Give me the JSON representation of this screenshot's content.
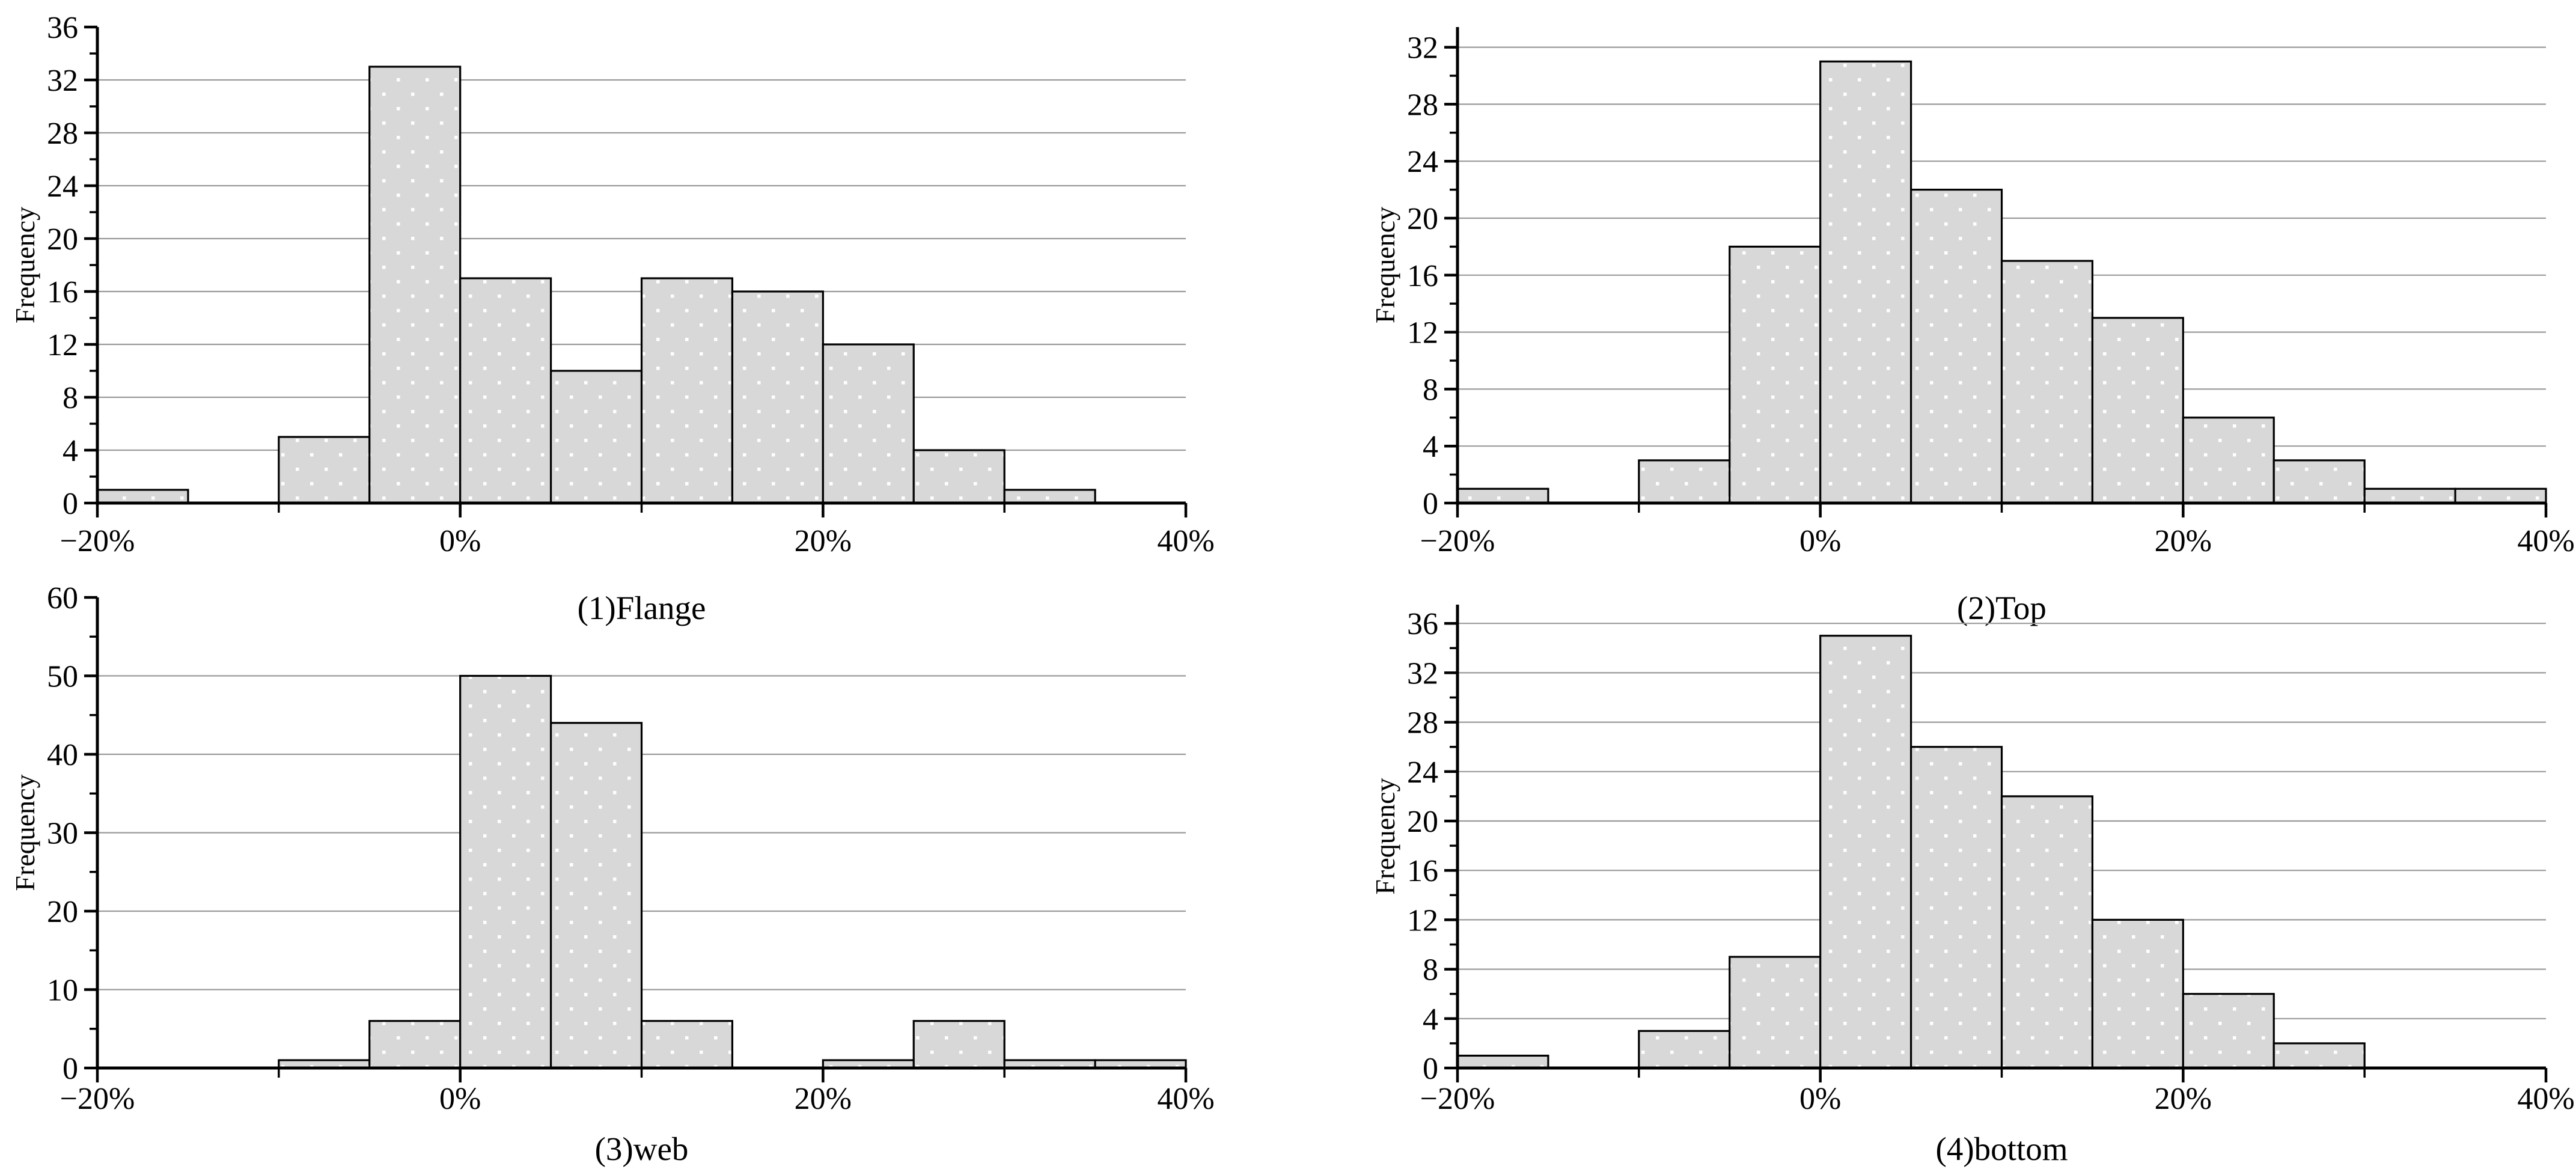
{
  "figure": {
    "background": "#ffffff",
    "bar_fill": "#d8d8d8",
    "bar_dot_color": "#ffffff",
    "bar_stroke": "#000000",
    "grid_color": "#9a9a9a",
    "axis_color": "#000000",
    "text_color": "#000000"
  },
  "chart_data": [
    {
      "type": "bar",
      "subtype": "histogram",
      "title": "(1)Flange",
      "ylabel": "Frequency",
      "xlabel": "",
      "bin_start": -20,
      "bin_width": 5,
      "bin_unit": "%",
      "values": [
        1,
        0,
        5,
        33,
        17,
        10,
        17,
        16,
        12,
        4,
        1,
        0
      ],
      "xlim": [
        -20,
        40
      ],
      "ylim": [
        0,
        36
      ],
      "x_major_ticks": [
        -20,
        0,
        20,
        40
      ],
      "x_major_labels": [
        "−20%",
        "0%",
        "20%",
        "40%"
      ],
      "x_minor_ticks": [
        -10,
        10,
        30
      ],
      "y_major_ticks": [
        0,
        4,
        8,
        12,
        16,
        20,
        24,
        28,
        32,
        36
      ],
      "y_minor_ticks": [
        2,
        6,
        10,
        14,
        18,
        22,
        26,
        30,
        34
      ],
      "gridlines_y": [
        4,
        8,
        12,
        16,
        20,
        24,
        28,
        32
      ],
      "grid": "horizontal",
      "legend": "none"
    },
    {
      "type": "bar",
      "subtype": "histogram",
      "title": "(2)Top",
      "ylabel": "Frequency",
      "xlabel": "",
      "bin_start": -20,
      "bin_width": 5,
      "bin_unit": "%",
      "values": [
        1,
        0,
        3,
        18,
        31,
        22,
        17,
        13,
        6,
        3,
        1,
        1
      ],
      "xlim": [
        -20,
        40
      ],
      "ylim": [
        0,
        32
      ],
      "x_major_ticks": [
        -20,
        0,
        20,
        40
      ],
      "x_major_labels": [
        "−20%",
        "0%",
        "20%",
        "40%"
      ],
      "x_minor_ticks": [
        -10,
        10,
        30
      ],
      "y_major_ticks": [
        0,
        4,
        8,
        12,
        16,
        20,
        24,
        28,
        32
      ],
      "y_minor_ticks": [
        2,
        6,
        10,
        14,
        18,
        22,
        26,
        30
      ],
      "gridlines_y": [
        4,
        8,
        12,
        16,
        20,
        24,
        28,
        32
      ],
      "grid": "horizontal",
      "legend": "none"
    },
    {
      "type": "bar",
      "subtype": "histogram",
      "title": "(3)web",
      "ylabel": "Frequency",
      "xlabel": "",
      "bin_start": -20,
      "bin_width": 5,
      "bin_unit": "%",
      "values": [
        0,
        0,
        1,
        6,
        50,
        44,
        6,
        0,
        1,
        6,
        1,
        1
      ],
      "xlim": [
        -20,
        40
      ],
      "ylim": [
        0,
        60
      ],
      "x_major_ticks": [
        -20,
        0,
        20,
        40
      ],
      "x_major_labels": [
        "−20%",
        "0%",
        "20%",
        "40%"
      ],
      "x_minor_ticks": [
        -10,
        10,
        30
      ],
      "y_major_ticks": [
        0,
        10,
        20,
        30,
        40,
        50,
        60
      ],
      "y_minor_ticks": [
        5,
        15,
        25,
        35,
        45,
        55
      ],
      "gridlines_y": [
        10,
        20,
        30,
        40,
        50
      ],
      "grid": "horizontal",
      "legend": "none"
    },
    {
      "type": "bar",
      "subtype": "histogram",
      "title": "(4)bottom",
      "ylabel": "Frequency",
      "xlabel": "",
      "bin_start": -20,
      "bin_width": 5,
      "bin_unit": "%",
      "values": [
        1,
        0,
        3,
        9,
        35,
        26,
        22,
        12,
        6,
        2,
        0,
        0
      ],
      "xlim": [
        -20,
        40
      ],
      "ylim": [
        0,
        36
      ],
      "x_major_ticks": [
        -20,
        0,
        20,
        40
      ],
      "x_major_labels": [
        "−20%",
        "0%",
        "20%",
        "40%"
      ],
      "x_minor_ticks": [
        -10,
        10,
        30
      ],
      "y_major_ticks": [
        0,
        4,
        8,
        12,
        16,
        20,
        24,
        28,
        32,
        36
      ],
      "y_minor_ticks": [
        2,
        6,
        10,
        14,
        18,
        22,
        26,
        30,
        34
      ],
      "gridlines_y": [
        4,
        8,
        12,
        16,
        20,
        24,
        28,
        32,
        36
      ],
      "grid": "horizontal",
      "legend": "none"
    }
  ]
}
